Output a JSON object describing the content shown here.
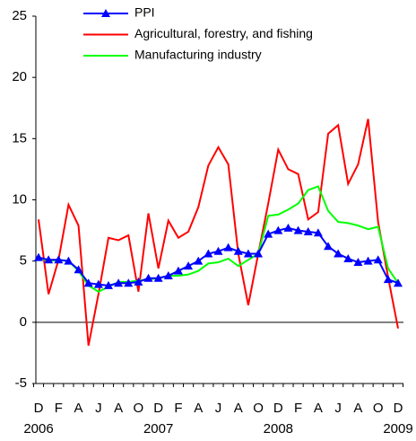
{
  "chart_data": {
    "type": "line",
    "categories": [
      "D",
      null,
      "F",
      null,
      "A",
      null,
      "J",
      null,
      "A",
      null,
      "O",
      null,
      "D",
      null,
      "F",
      null,
      "A",
      null,
      "J",
      null,
      "A",
      null,
      "O",
      null,
      "D",
      null,
      "F",
      null,
      "A",
      null,
      "J",
      null,
      "A",
      null,
      "O",
      null,
      "D"
    ],
    "year_labels": [
      {
        "index": 0,
        "label": "2006"
      },
      {
        "index": 12,
        "label": "2007"
      },
      {
        "index": 24,
        "label": "2008"
      },
      {
        "index": 36,
        "label": "2009"
      }
    ],
    "series": [
      {
        "name": "PPI",
        "color": "#0000ff",
        "marker": "triangle",
        "values": [
          5.3,
          5.1,
          5.1,
          5.0,
          4.3,
          3.2,
          3.1,
          3.0,
          3.2,
          3.2,
          3.3,
          3.6,
          3.6,
          3.8,
          4.2,
          4.6,
          5.0,
          5.6,
          5.8,
          6.1,
          5.8,
          5.6,
          5.6,
          7.2,
          7.5,
          7.7,
          7.5,
          7.4,
          7.3,
          6.2,
          5.6,
          5.2,
          4.9,
          5.0,
          5.1,
          3.5,
          3.2
        ]
      },
      {
        "name": "Agricultural, forestry, and fishing",
        "color": "#ff0000",
        "values": [
          8.4,
          2.3,
          5.1,
          9.6,
          7.9,
          -1.9,
          2.3,
          6.9,
          6.7,
          7.1,
          2.5,
          8.9,
          4.4,
          8.3,
          6.9,
          7.4,
          9.4,
          12.8,
          14.3,
          12.9,
          5.6,
          1.4,
          5.6,
          9.7,
          14.1,
          12.5,
          12.1,
          8.4,
          9.0,
          15.4,
          16.1,
          11.3,
          12.9,
          16.6,
          8.2,
          3.7,
          -0.5
        ]
      },
      {
        "name": "Manufacturing industry",
        "color": "#00ff00",
        "values": [
          5.3,
          5.0,
          5.1,
          5.0,
          4.2,
          3.0,
          2.5,
          2.9,
          3.3,
          3.3,
          3.4,
          3.5,
          3.6,
          3.8,
          3.8,
          3.9,
          4.2,
          4.8,
          4.9,
          5.2,
          4.6,
          5.1,
          5.6,
          8.7,
          8.8,
          9.2,
          9.7,
          10.8,
          11.1,
          9.1,
          8.2,
          8.1,
          7.9,
          7.6,
          7.8,
          4.4,
          3.2
        ]
      }
    ],
    "ylim": [
      -5,
      25
    ],
    "yticks": [
      -5,
      0,
      5,
      10,
      15,
      20,
      25
    ],
    "zero_line": true
  }
}
